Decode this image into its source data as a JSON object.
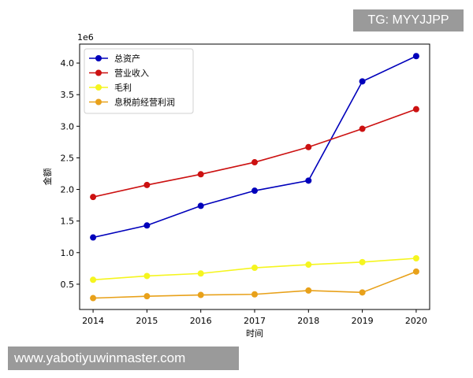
{
  "watermark_top": "TG: MYYJJPP",
  "watermark_bottom": "www.yabotiyuwinmaster.com",
  "chart_data": {
    "type": "line",
    "title": "",
    "xlabel": "时间",
    "ylabel": "金额",
    "y_offset_label": "1e6",
    "x": [
      2014,
      2015,
      2016,
      2017,
      2018,
      2019,
      2020
    ],
    "xticks": [
      "2014",
      "2015",
      "2016",
      "2017",
      "2018",
      "2019",
      "2020"
    ],
    "yticks": [
      "0.5",
      "1.0",
      "1.5",
      "2.0",
      "2.5",
      "3.0",
      "3.5",
      "4.0"
    ],
    "ytick_values": [
      0.5,
      1.0,
      1.5,
      2.0,
      2.5,
      3.0,
      3.5,
      4.0
    ],
    "ylim": [
      0.1,
      4.3
    ],
    "grid": false,
    "legend_position": "top-left",
    "series": [
      {
        "name": "总资产",
        "color": "#0000bb",
        "values": [
          1.24,
          1.43,
          1.74,
          1.98,
          2.14,
          3.71,
          4.11
        ]
      },
      {
        "name": "营业收入",
        "color": "#cc1111",
        "values": [
          1.88,
          2.07,
          2.24,
          2.43,
          2.67,
          2.96,
          3.27
        ]
      },
      {
        "name": "毛利",
        "color": "#f5f51f",
        "values": [
          0.57,
          0.63,
          0.67,
          0.76,
          0.81,
          0.85,
          0.91
        ]
      },
      {
        "name": "息税前经营利润",
        "color": "#e8a11a",
        "values": [
          0.28,
          0.31,
          0.33,
          0.34,
          0.4,
          0.37,
          0.7
        ]
      }
    ]
  }
}
